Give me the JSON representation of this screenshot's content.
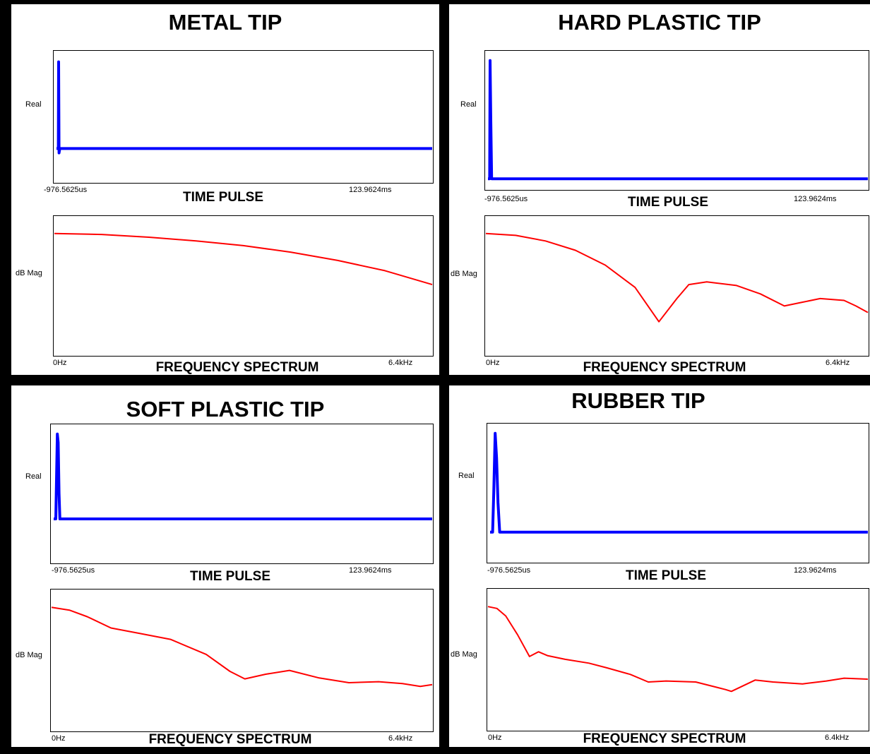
{
  "colors": {
    "pulse": "#0000ff",
    "spectrum": "#ff0000",
    "frame": "#000000",
    "panel": "#ffffff"
  },
  "chart_data": [
    {
      "type": "line",
      "title": "METAL TIP",
      "time_pulse": {
        "title": "TIME PULSE",
        "ylabel": "Real",
        "x_ticks": [
          "-976.5625us",
          "123.9624ms"
        ],
        "x_range_ms": [
          -0.9765625,
          123.9624
        ],
        "series": [
          {
            "x": [
              -0.98,
              0.3,
              0.5,
              0.8,
              1.3,
              123.96
            ],
            "y": [
              0,
              0,
              0.98,
              -0.05,
              0,
              0
            ]
          }
        ]
      },
      "frequency_spectrum": {
        "title": "FREQUENCY SPECTRUM",
        "ylabel": "dB Mag",
        "x_ticks": [
          "0Hz",
          "6.4kHz"
        ],
        "x_range_khz": [
          0,
          6.4
        ],
        "series": [
          {
            "x": [
              0,
              0.8,
              1.6,
              2.4,
              3.2,
              4.0,
              4.8,
              5.6,
              6.4
            ],
            "y": [
              0,
              -0.01,
              -0.04,
              -0.08,
              -0.13,
              -0.2,
              -0.29,
              -0.4,
              -0.55
            ]
          }
        ]
      }
    },
    {
      "type": "line",
      "title": "HARD PLASTIC TIP",
      "time_pulse": {
        "title": "TIME PULSE",
        "ylabel": "Real",
        "x_ticks": [
          "-976.5625us",
          "123.9624ms"
        ],
        "x_range_ms": [
          -0.9765625,
          123.9624
        ],
        "series": [
          {
            "x": [
              -0.98,
              0.2,
              0.5,
              1.0,
              1.6,
              123.96
            ],
            "y": [
              0,
              0,
              1.0,
              0.5,
              0,
              0
            ]
          }
        ]
      },
      "frequency_spectrum": {
        "title": "FREQUENCY SPECTRUM",
        "ylabel": "dB Mag",
        "x_ticks": [
          "0Hz",
          "6.4kHz"
        ],
        "x_range_khz": [
          0,
          6.4
        ],
        "series": [
          {
            "x": [
              0,
              0.5,
              1.0,
              1.5,
              2.0,
              2.5,
              2.9,
              3.2,
              3.4,
              3.7,
              4.2,
              4.6,
              5.0,
              5.3,
              5.6,
              6.0,
              6.2,
              6.4
            ],
            "y": [
              0,
              -0.02,
              -0.08,
              -0.18,
              -0.34,
              -0.58,
              -0.95,
              -0.7,
              -0.55,
              -0.52,
              -0.56,
              -0.65,
              -0.78,
              -0.74,
              -0.7,
              -0.72,
              -0.78,
              -0.85
            ]
          }
        ]
      }
    },
    {
      "type": "line",
      "title": "SOFT PLASTIC TIP",
      "time_pulse": {
        "title": "TIME PULSE",
        "ylabel": "Real",
        "x_ticks": [
          "-976.5625us",
          "123.9624ms"
        ],
        "x_range_ms": [
          -0.9765625,
          123.9624
        ],
        "series": [
          {
            "x": [
              -0.98,
              0.5,
              1.0,
              1.6,
              2.2,
              2.8,
              3.4,
              123.96
            ],
            "y": [
              0,
              0,
              0.45,
              1.0,
              0.9,
              0.3,
              0,
              0
            ]
          }
        ]
      },
      "frequency_spectrum": {
        "title": "FREQUENCY SPECTRUM",
        "ylabel": "dB Mag",
        "x_ticks": [
          "0Hz",
          "6.4kHz"
        ],
        "x_range_khz": [
          0,
          6.4
        ],
        "series": [
          {
            "x": [
              0,
              0.3,
              0.6,
              1.0,
              1.5,
              2.0,
              2.6,
              3.0,
              3.25,
              3.6,
              4.0,
              4.5,
              5.0,
              5.5,
              5.9,
              6.2,
              6.4
            ],
            "y": [
              0,
              -0.03,
              -0.1,
              -0.22,
              -0.28,
              -0.34,
              -0.5,
              -0.68,
              -0.76,
              -0.71,
              -0.67,
              -0.75,
              -0.8,
              -0.79,
              -0.81,
              -0.84,
              -0.82
            ]
          }
        ]
      }
    },
    {
      "type": "line",
      "title": "RUBBER TIP",
      "time_pulse": {
        "title": "TIME PULSE",
        "ylabel": "Real",
        "x_ticks": [
          "-976.5625us",
          "123.9624ms"
        ],
        "x_range_ms": [
          -0.9765625,
          123.9624
        ],
        "series": [
          {
            "x": [
              -0.98,
              0.8,
              1.6,
              2.6,
              3.6,
              4.6,
              5.8,
              6.5,
              123.96
            ],
            "y": [
              0,
              0,
              0.4,
              1.0,
              0.75,
              0.3,
              0,
              0,
              0
            ]
          }
        ]
      },
      "frequency_spectrum": {
        "title": "FREQUENCY SPECTRUM",
        "ylabel": "dB Mag",
        "x_ticks": [
          "0Hz",
          "6.4kHz"
        ],
        "x_range_khz": [
          0,
          6.4
        ],
        "series": [
          {
            "x": [
              0,
              0.15,
              0.3,
              0.5,
              0.7,
              0.85,
              1.0,
              1.3,
              1.7,
              2.0,
              2.4,
              2.7,
              3.0,
              3.5,
              4.0,
              4.1,
              4.3,
              4.5,
              4.8,
              5.3,
              5.7,
              6.0,
              6.4
            ],
            "y": [
              0,
              -0.02,
              -0.1,
              -0.3,
              -0.53,
              -0.48,
              -0.52,
              -0.56,
              -0.6,
              -0.65,
              -0.72,
              -0.8,
              -0.79,
              -0.8,
              -0.88,
              -0.9,
              -0.84,
              -0.78,
              -0.8,
              -0.82,
              -0.79,
              -0.76,
              -0.77
            ]
          }
        ]
      }
    }
  ]
}
